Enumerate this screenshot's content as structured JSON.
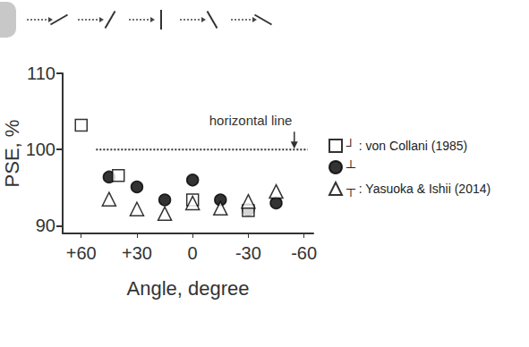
{
  "chart_data": {
    "type": "scatter",
    "x_label": "Angle, degree",
    "y_label": "PSE, %",
    "xlim": [
      70,
      -65
    ],
    "xticks": [
      {
        "value": 60,
        "label": "+60"
      },
      {
        "value": 30,
        "label": "+30"
      },
      0,
      -30,
      -60
    ],
    "ylim": [
      89,
      110
    ],
    "yticks": [
      90,
      100,
      110
    ],
    "grid": false,
    "legend": "right",
    "series": [
      {
        "name": "┘ : von Collani (1985)",
        "color": "#000000",
        "marker": "square-open",
        "x": [
          60,
          40,
          0,
          -30
        ],
        "values": [
          103.2,
          96.6,
          93.4,
          92.0
        ]
      },
      {
        "name": "┴",
        "color": "#000000",
        "marker": "circle",
        "x": [
          45,
          30,
          15,
          0,
          -15,
          -30,
          -45
        ],
        "values": [
          96.4,
          95.1,
          93.4,
          96.0,
          93.4,
          92.1,
          93.0
        ]
      },
      {
        "name": "┬ : Yasuoka & Ishii (2014)",
        "color": "#000000",
        "marker": "triangle-open",
        "x": [
          45,
          30,
          15,
          0,
          -15,
          -30,
          -45
        ],
        "values": [
          93.5,
          92.2,
          91.6,
          93.0,
          92.3,
          93.2,
          94.5
        ]
      }
    ],
    "reference_line": {
      "y": 100,
      "x": [
        52,
        -62
      ],
      "label": "horizontal line"
    }
  }
}
